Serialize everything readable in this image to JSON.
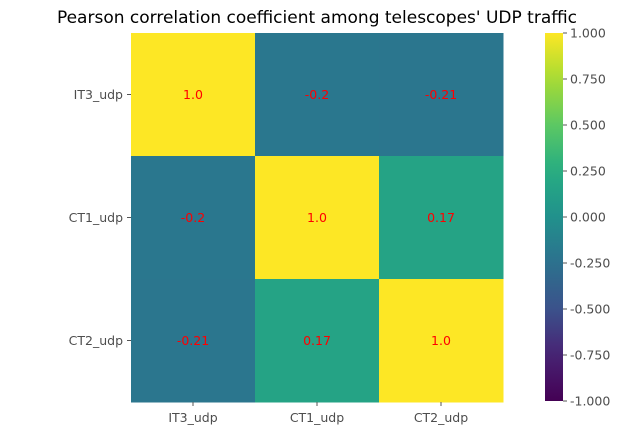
{
  "chart_data": {
    "type": "heatmap",
    "title": "Pearson correlation coefficient among telescopes' UDP traffic",
    "xlabel": "",
    "ylabel": "",
    "x_categories": [
      "IT3_udp",
      "CT1_udp",
      "CT2_udp"
    ],
    "y_categories": [
      "IT3_udp",
      "CT1_udp",
      "CT2_udp"
    ],
    "values": [
      [
        1.0,
        -0.2,
        -0.21
      ],
      [
        -0.2,
        1.0,
        0.17
      ],
      [
        -0.21,
        0.17,
        1.0
      ]
    ],
    "cell_labels": [
      [
        "1.0",
        "-0.2",
        "-0.21"
      ],
      [
        "-0.2",
        "1.0",
        "0.17"
      ],
      [
        "-0.21",
        "0.17",
        "1.0"
      ]
    ],
    "colormap": "viridis",
    "vmin": -1.0,
    "vmax": 1.0,
    "colorbar_ticks": [
      1.0,
      0.75,
      0.5,
      0.25,
      0.0,
      -0.25,
      -0.5,
      -0.75,
      -1.0
    ],
    "colorbar_tick_labels": [
      "1.000",
      "0.750",
      "0.500",
      "0.250",
      "0.000",
      "-0.250",
      "-0.500",
      "-0.750",
      "-1.000"
    ],
    "cell_label_color": "#ff0000",
    "grid": false
  }
}
